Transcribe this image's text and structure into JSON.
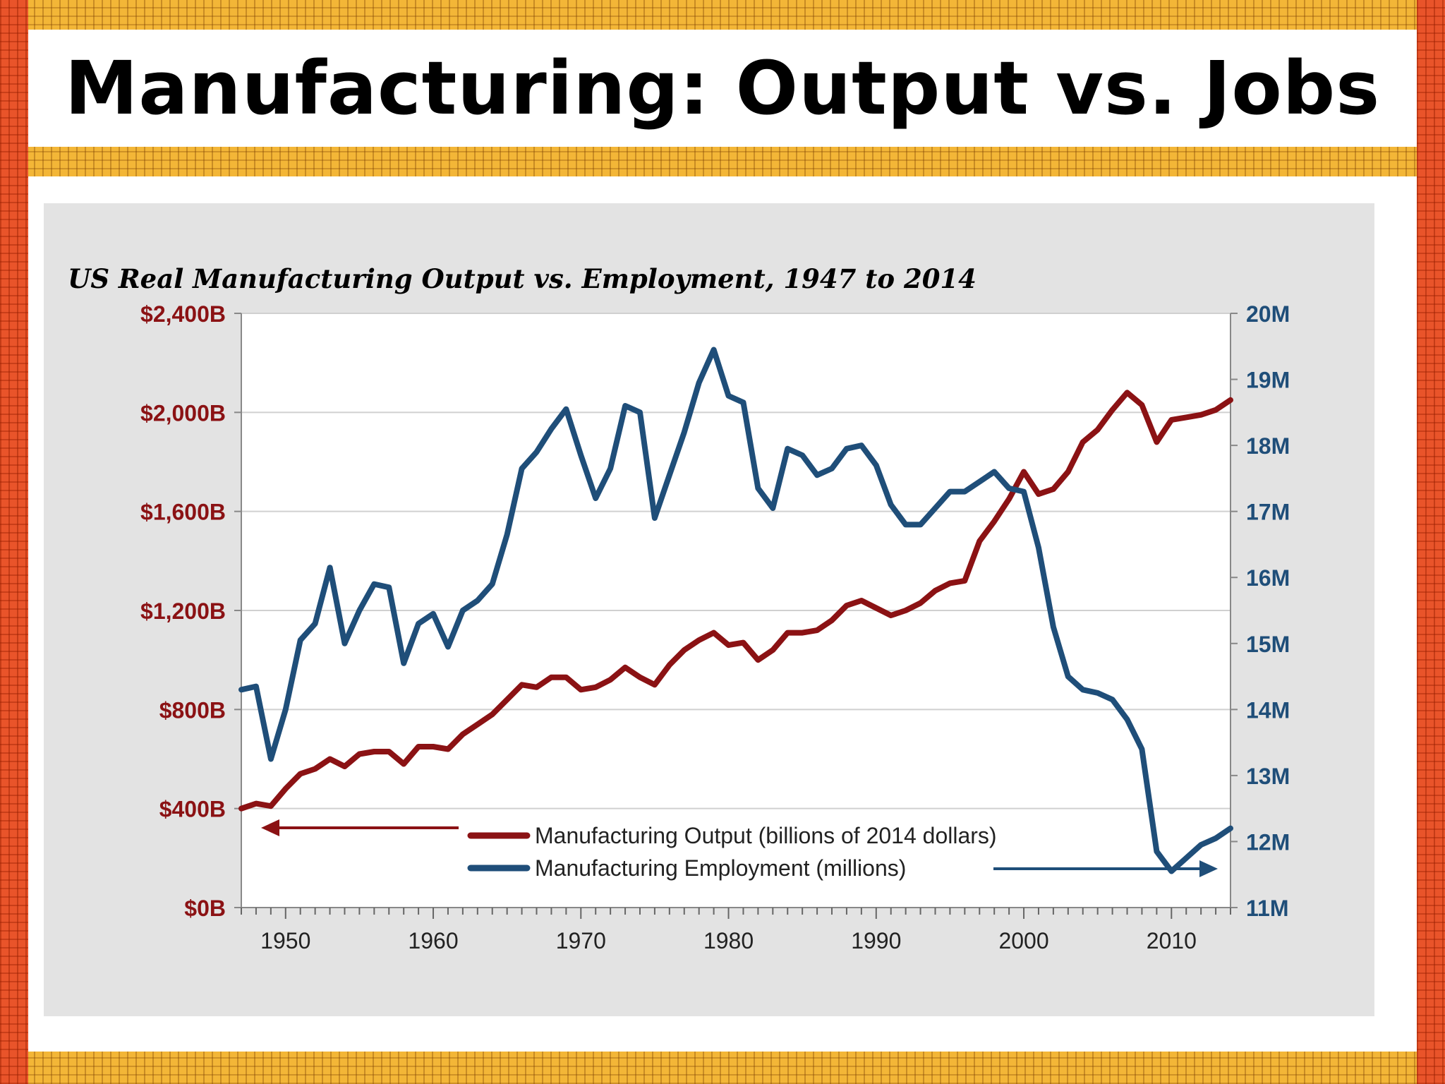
{
  "slide": {
    "title": "Manufacturing: Output vs. Jobs"
  },
  "colors": {
    "output": "#8b1214",
    "employment": "#1f4e79",
    "left_axis_text": "#8b1214",
    "right_axis_text": "#1f4e79"
  },
  "chart_data": {
    "type": "line",
    "title": "US Real Manufacturing Output vs. Employment, 1947 to 2014",
    "xlim": [
      1947,
      2014
    ],
    "x_ticks": [
      "1950",
      "1960",
      "1970",
      "1980",
      "1990",
      "2000",
      "2010"
    ],
    "y_left": {
      "ylim": [
        0,
        2400
      ],
      "tick_labels": [
        "$0B",
        "$400B",
        "$800B",
        "$1,200B",
        "$1,600B",
        "$2,000B",
        "$2,400B"
      ],
      "tick_values": [
        0,
        400,
        800,
        1200,
        1600,
        2000,
        2400
      ]
    },
    "y_right": {
      "ylim": [
        11,
        20
      ],
      "tick_labels": [
        "11M",
        "12M",
        "13M",
        "14M",
        "15M",
        "16M",
        "17M",
        "18M",
        "19M",
        "20M"
      ],
      "tick_values": [
        11,
        12,
        13,
        14,
        15,
        16,
        17,
        18,
        19,
        20
      ]
    },
    "grid": true,
    "legend_position": "bottom-center",
    "x": [
      1947,
      1948,
      1949,
      1950,
      1951,
      1952,
      1953,
      1954,
      1955,
      1956,
      1957,
      1958,
      1959,
      1960,
      1961,
      1962,
      1963,
      1964,
      1965,
      1966,
      1967,
      1968,
      1969,
      1970,
      1971,
      1972,
      1973,
      1974,
      1975,
      1976,
      1977,
      1978,
      1979,
      1980,
      1981,
      1982,
      1983,
      1984,
      1985,
      1986,
      1987,
      1988,
      1989,
      1990,
      1991,
      1992,
      1993,
      1994,
      1995,
      1996,
      1997,
      1998,
      1999,
      2000,
      2001,
      2002,
      2003,
      2004,
      2005,
      2006,
      2007,
      2008,
      2009,
      2010,
      2011,
      2012,
      2013,
      2014
    ],
    "series": [
      {
        "name": "Manufacturing Output (billions of 2014 dollars)",
        "axis": "left",
        "values": [
          400,
          420,
          410,
          480,
          540,
          560,
          600,
          570,
          620,
          630,
          630,
          580,
          650,
          650,
          640,
          700,
          740,
          780,
          840,
          900,
          890,
          930,
          930,
          880,
          890,
          920,
          970,
          930,
          900,
          980,
          1040,
          1080,
          1110,
          1060,
          1070,
          1000,
          1040,
          1110,
          1110,
          1120,
          1160,
          1220,
          1240,
          1210,
          1180,
          1200,
          1230,
          1280,
          1310,
          1320,
          1480,
          1560,
          1650,
          1760,
          1670,
          1690,
          1760,
          1880,
          1930,
          2010,
          2080,
          2030,
          1880,
          1970,
          1980,
          1990,
          2010,
          2050
        ]
      },
      {
        "name": "Manufacturing Employment (millions)",
        "axis": "right",
        "values": [
          14.3,
          14.35,
          13.25,
          14.0,
          15.05,
          15.3,
          16.15,
          15.0,
          15.5,
          15.9,
          15.85,
          14.7,
          15.3,
          15.45,
          14.95,
          15.5,
          15.65,
          15.9,
          16.65,
          17.65,
          17.9,
          18.25,
          18.55,
          17.85,
          17.2,
          17.65,
          18.6,
          18.5,
          16.9,
          17.55,
          18.2,
          18.95,
          19.45,
          18.75,
          18.65,
          17.35,
          17.05,
          17.95,
          17.85,
          17.55,
          17.65,
          17.95,
          18.0,
          17.7,
          17.1,
          16.8,
          16.8,
          17.05,
          17.3,
          17.3,
          17.45,
          17.6,
          17.35,
          17.3,
          16.45,
          15.25,
          14.5,
          14.3,
          14.25,
          14.15,
          13.85,
          13.4,
          11.85,
          11.55,
          11.75,
          11.95,
          12.05,
          12.2
        ]
      }
    ]
  }
}
